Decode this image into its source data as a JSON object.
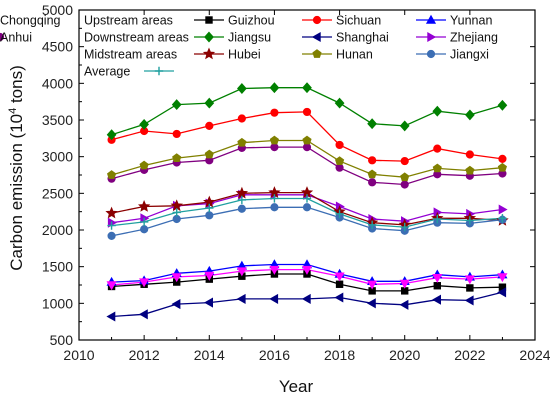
{
  "chart_data": {
    "type": "line",
    "title": "",
    "xlabel": "Year",
    "ylabel_main": "Carbon emission (10",
    "ylabel_sup": "4",
    "ylabel_tail": " tons)",
    "xlim": [
      2010,
      2024
    ],
    "ylim": [
      500,
      5000
    ],
    "xticks": [
      "2010",
      "2012",
      "2014",
      "2016",
      "2018",
      "2020",
      "2022",
      "2024"
    ],
    "yticks": [
      "500",
      "1000",
      "1500",
      "2000",
      "2500",
      "3000",
      "3500",
      "4000",
      "4500",
      "5000"
    ],
    "grid": false,
    "legend_position": "top",
    "legend_groups": [
      {
        "label": "Upstream areas",
        "series": [
          "Guizhou",
          "Sichuan",
          "Yunnan",
          "Chongqing"
        ]
      },
      {
        "label": "Downstream areas",
        "series": [
          "Jiangsu",
          "Shanghai",
          "Zhejiang",
          "Anhui"
        ]
      },
      {
        "label": "Midstream areas",
        "series": [
          "Hubei",
          "Hunan",
          "Jiangxi"
        ]
      },
      {
        "label": "Average",
        "series": [
          "Average"
        ]
      }
    ],
    "x": [
      2011,
      2012,
      2013,
      2014,
      2015,
      2016,
      2017,
      2018,
      2019,
      2020,
      2021,
      2022,
      2023
    ],
    "series": [
      {
        "name": "Guizhou",
        "color": "#000000",
        "marker": "square",
        "values": [
          1230,
          1260,
          1290,
          1330,
          1370,
          1400,
          1400,
          1260,
          1170,
          1170,
          1240,
          1210,
          1220
        ]
      },
      {
        "name": "Sichuan",
        "color": "#ff0000",
        "marker": "circle",
        "values": [
          3230,
          3350,
          3310,
          3420,
          3520,
          3600,
          3610,
          3160,
          2950,
          2940,
          3110,
          3030,
          2970
        ]
      },
      {
        "name": "Yunnan",
        "color": "#0000ff",
        "marker": "triangle-up",
        "values": [
          1290,
          1310,
          1410,
          1440,
          1510,
          1530,
          1530,
          1400,
          1300,
          1300,
          1390,
          1360,
          1390
        ]
      },
      {
        "name": "Chongqing",
        "color": "#ff00ff",
        "marker": "triangle-down",
        "values": [
          1250,
          1290,
          1360,
          1380,
          1440,
          1460,
          1460,
          1370,
          1260,
          1270,
          1350,
          1330,
          1360
        ]
      },
      {
        "name": "Jiangsu",
        "color": "#008000",
        "marker": "diamond",
        "values": [
          3300,
          3440,
          3710,
          3730,
          3930,
          3940,
          3940,
          3730,
          3450,
          3420,
          3620,
          3570,
          3700
        ]
      },
      {
        "name": "Shanghai",
        "color": "#000080",
        "marker": "triangle-left",
        "values": [
          820,
          850,
          990,
          1010,
          1060,
          1060,
          1060,
          1080,
          1000,
          980,
          1050,
          1040,
          1150
        ]
      },
      {
        "name": "Zhejiang",
        "color": "#9400d3",
        "marker": "triangle-right",
        "values": [
          2100,
          2160,
          2330,
          2360,
          2480,
          2480,
          2480,
          2320,
          2150,
          2120,
          2240,
          2220,
          2280
        ]
      },
      {
        "name": "Anhui",
        "color": "#800080",
        "marker": "circle",
        "values": [
          2700,
          2820,
          2920,
          2950,
          3120,
          3130,
          3130,
          2850,
          2650,
          2620,
          2760,
          2740,
          2770
        ]
      },
      {
        "name": "Hubei",
        "color": "#8b0000",
        "marker": "star",
        "values": [
          2230,
          2320,
          2330,
          2380,
          2500,
          2510,
          2510,
          2250,
          2100,
          2070,
          2160,
          2160,
          2130
        ]
      },
      {
        "name": "Hunan",
        "color": "#808000",
        "marker": "pentagon",
        "values": [
          2750,
          2880,
          2980,
          3030,
          3190,
          3220,
          3220,
          2940,
          2760,
          2720,
          2840,
          2810,
          2850
        ]
      },
      {
        "name": "Jiangxi",
        "color": "#3c6eb4",
        "marker": "circle",
        "values": [
          1920,
          2010,
          2150,
          2200,
          2290,
          2310,
          2310,
          2170,
          2020,
          1990,
          2100,
          2090,
          2140
        ]
      },
      {
        "name": "Average",
        "color": "#20a0a0",
        "marker": "plus",
        "values": [
          2060,
          2110,
          2240,
          2300,
          2410,
          2430,
          2430,
          2220,
          2070,
          2040,
          2150,
          2130,
          2160
        ]
      }
    ]
  }
}
